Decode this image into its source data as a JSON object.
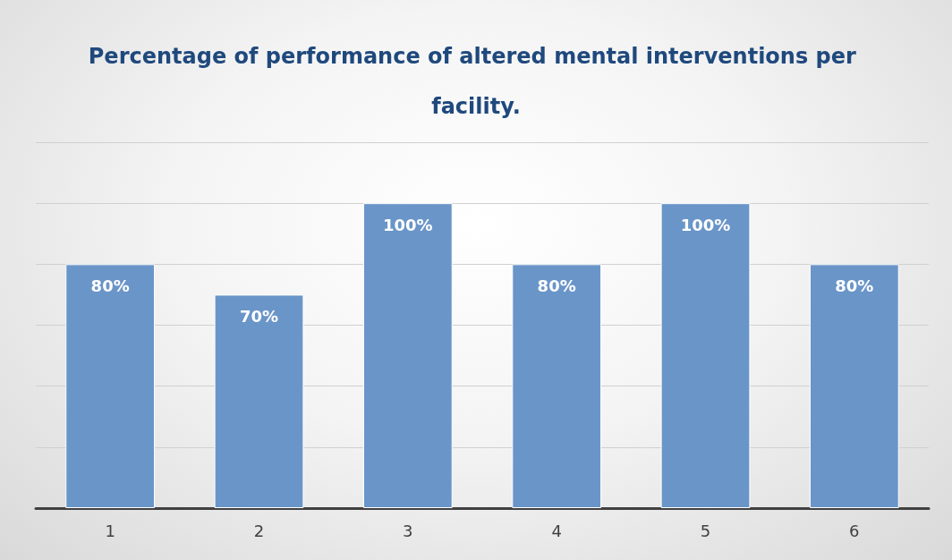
{
  "chart_data": {
    "type": "bar",
    "title": "Percentage of performance of altered mental interventions per facility.",
    "categories": [
      "1",
      "2",
      "3",
      "4",
      "5",
      "6"
    ],
    "values": [
      80,
      70,
      100,
      80,
      100,
      80
    ],
    "value_labels": [
      "80%",
      "70%",
      "100%",
      "80%",
      "100%",
      "80%"
    ],
    "color": "#6a95c8",
    "ylim": [
      0,
      120
    ],
    "yticks": [
      {
        "value": 0,
        "label": null
      },
      {
        "value": 20,
        "label": null
      },
      {
        "value": 40,
        "label": null
      },
      {
        "value": 60,
        "label": null
      },
      {
        "value": 80,
        "label": null
      },
      {
        "value": 100,
        "label": null
      },
      {
        "value": 120,
        "label": null
      }
    ],
    "tick_labels": "x",
    "grid": "y"
  }
}
